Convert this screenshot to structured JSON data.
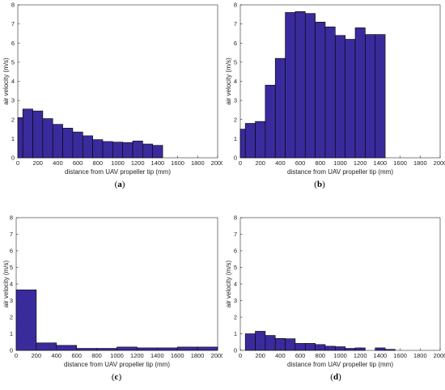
{
  "chart_data": [
    {
      "type": "bar",
      "caption_open": "(",
      "caption_letter": "a",
      "caption_close": ")",
      "xlabel": "distance from UAV propeller tip (mm)",
      "ylabel": "air velocity (m/s)",
      "xlim": [
        0,
        2000
      ],
      "ylim": [
        0,
        8
      ],
      "xticks": [
        0,
        200,
        400,
        600,
        800,
        1000,
        1200,
        1400,
        1600,
        1800,
        2000
      ],
      "yticks": [
        0,
        1,
        2,
        3,
        4,
        5,
        6,
        7,
        8
      ],
      "bin_width": 100,
      "x": [
        0,
        50,
        150,
        250,
        350,
        450,
        550,
        650,
        750,
        850,
        950,
        1050,
        1150,
        1250,
        1350
      ],
      "widths": [
        50,
        100,
        100,
        100,
        100,
        100,
        100,
        100,
        100,
        100,
        100,
        100,
        100,
        100,
        100
      ],
      "values": [
        2.1,
        2.55,
        2.45,
        2.05,
        1.75,
        1.55,
        1.35,
        1.15,
        0.95,
        0.85,
        0.82,
        0.8,
        0.88,
        0.72,
        0.65
      ]
    },
    {
      "type": "bar",
      "caption_open": "(",
      "caption_letter": "b",
      "caption_close": ")",
      "xlabel": "distance from UAV propeller tip (mm)",
      "ylabel": "air velocity (m/s)",
      "xlim": [
        0,
        2000
      ],
      "ylim": [
        0,
        8
      ],
      "xticks": [
        0,
        200,
        400,
        600,
        800,
        1000,
        1200,
        1400,
        1600,
        1800,
        2000
      ],
      "yticks": [
        0,
        1,
        2,
        3,
        4,
        5,
        6,
        7,
        8
      ],
      "x": [
        0,
        50,
        150,
        250,
        350,
        450,
        550,
        650,
        750,
        850,
        950,
        1050,
        1150,
        1250,
        1350
      ],
      "widths": [
        50,
        100,
        100,
        100,
        100,
        100,
        100,
        100,
        100,
        100,
        100,
        100,
        100,
        100,
        100
      ],
      "values": [
        1.5,
        1.8,
        1.9,
        3.8,
        5.2,
        7.6,
        7.65,
        7.55,
        7.1,
        6.85,
        6.4,
        6.2,
        6.8,
        6.45,
        6.45
      ]
    },
    {
      "type": "bar",
      "caption_open": "(",
      "caption_letter": "c",
      "caption_close": ")",
      "xlabel": "distance from UAV propeller tip (mm)",
      "ylabel": "air velocity (m/s)",
      "xlim": [
        0,
        2000
      ],
      "ylim": [
        0,
        8
      ],
      "xticks": [
        0,
        200,
        400,
        600,
        800,
        1000,
        1200,
        1400,
        1600,
        1800,
        2000
      ],
      "yticks": [
        0,
        1,
        2,
        3,
        4,
        5,
        6,
        7,
        8
      ],
      "x": [
        0,
        200,
        400,
        600,
        800,
        1000,
        1200,
        1400,
        1600,
        1800
      ],
      "widths": [
        200,
        200,
        200,
        200,
        200,
        200,
        200,
        200,
        200,
        200
      ],
      "values": [
        3.65,
        0.45,
        0.3,
        0.12,
        0.12,
        0.2,
        0.15,
        0.15,
        0.2,
        0.2
      ]
    },
    {
      "type": "bar",
      "caption_open": "(",
      "caption_letter": "d",
      "caption_close": ")",
      "xlabel": "distance from UAV propeller tip (mm)",
      "ylabel": "air velocity (m/s)",
      "xlim": [
        0,
        2000
      ],
      "ylim": [
        0,
        8
      ],
      "xticks": [
        0,
        200,
        400,
        600,
        800,
        1000,
        1200,
        1400,
        1600,
        1800,
        2000
      ],
      "yticks": [
        0,
        1,
        2,
        3,
        4,
        5,
        6,
        7,
        8
      ],
      "x": [
        50,
        150,
        250,
        350,
        450,
        550,
        650,
        750,
        850,
        950,
        1050,
        1150,
        1350,
        1450
      ],
      "widths": [
        100,
        100,
        100,
        100,
        100,
        100,
        100,
        100,
        100,
        100,
        100,
        100,
        100,
        100
      ],
      "values": [
        1.0,
        1.15,
        0.9,
        0.72,
        0.7,
        0.42,
        0.42,
        0.35,
        0.25,
        0.22,
        0.12,
        0.15,
        0.15,
        0.06
      ]
    }
  ]
}
